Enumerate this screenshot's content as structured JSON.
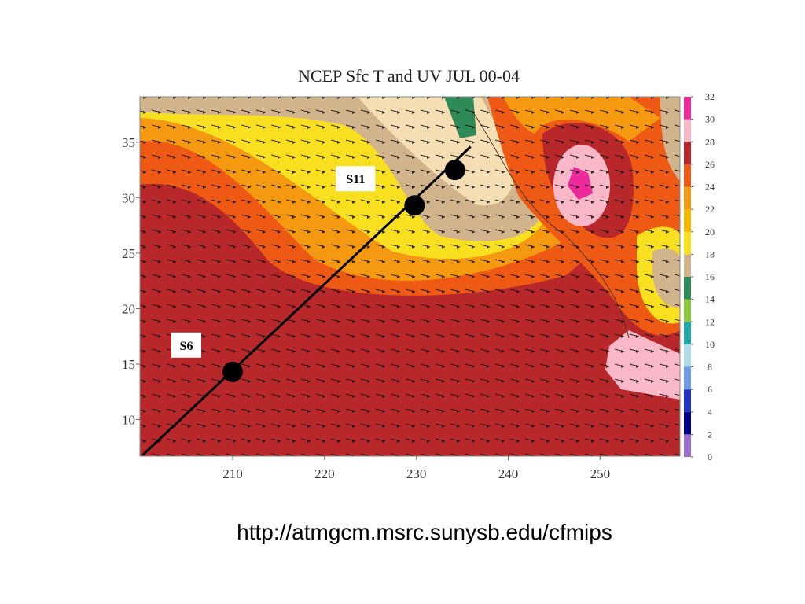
{
  "chart_data": {
    "type": "map",
    "title": "NCEP Sfc T and UV JUL 00-04",
    "xlim": [
      199.9,
      258.7
    ],
    "ylim": [
      6.7,
      39.1
    ],
    "xticks": [
      210,
      220,
      230,
      240,
      250
    ],
    "yticks": [
      10,
      15,
      20,
      25,
      30,
      35
    ],
    "colorbar": {
      "ticks": [
        0,
        2,
        4,
        6,
        8,
        10,
        12,
        14,
        16,
        18,
        20,
        22,
        24,
        26,
        28,
        30,
        32
      ],
      "colors": [
        "#9b6fd0",
        "#00008b",
        "#2233cc",
        "#6f9be8",
        "#b0dce8",
        "#22aaaa",
        "#8cc63f",
        "#2e8b57",
        "#d2b48c",
        "#f8e020",
        "#f5b800",
        "#f59a10",
        "#ee5a14",
        "#b8282a",
        "#f8b8c8",
        "#ee2a9a"
      ]
    },
    "section_line": {
      "x": [
        200.2,
        235.9
      ],
      "y": [
        6.8,
        34.6
      ]
    },
    "stations": [
      {
        "label": "S6",
        "x": 210,
        "y": 14.3
      },
      {
        "label": "S11",
        "x": 229.8,
        "y": 29.3
      },
      {
        "x": 234.2,
        "y": 32.5
      }
    ],
    "source": "http://atmgcm.msrc.sunysb.edu/cfmips"
  }
}
